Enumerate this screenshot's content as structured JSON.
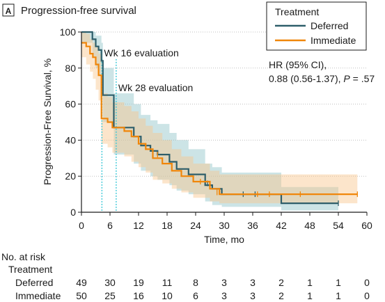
{
  "panel": {
    "letter": "A",
    "title": "Progression-free survival"
  },
  "colors": {
    "deferred": "#2e5e6a",
    "immediate": "#f0860a",
    "deferred_band": "#8fc3c7",
    "immediate_band": "#f8c58c",
    "evaluation_line": "#3cc8d8",
    "gridline": "#bfbfbf"
  },
  "chart_data": {
    "type": "line",
    "title": "",
    "xlabel": "Time, mo",
    "ylabel": "Progression-Free Survival, %",
    "xlim": [
      0,
      60
    ],
    "ylim": [
      0,
      100
    ],
    "xticks": [
      0,
      6,
      12,
      18,
      24,
      30,
      36,
      42,
      48,
      54,
      60
    ],
    "yticks": [
      0,
      20,
      40,
      60,
      80,
      100
    ],
    "grid": "horizontal",
    "legend": {
      "title": "Treatment",
      "position": "top-right",
      "entries": [
        "Deferred",
        "Immediate"
      ]
    },
    "hazard_ratio": {
      "line1": "HR (95% CI),",
      "line2": "0.88 (0.56-1.37), ",
      "p_label": "P",
      "p_value": " = .57"
    },
    "annotations": [
      {
        "label": "Wk 16 evaluation",
        "x": 4.3
      },
      {
        "label": "Wk 28 evaluation",
        "x": 7.3
      }
    ],
    "series": [
      {
        "name": "Deferred",
        "step": [
          [
            0,
            100
          ],
          [
            2,
            100
          ],
          [
            2.3,
            96
          ],
          [
            3,
            92
          ],
          [
            3.6,
            90
          ],
          [
            4.2,
            84
          ],
          [
            4.5,
            65
          ],
          [
            5.8,
            65
          ],
          [
            6.8,
            47
          ],
          [
            9,
            47
          ],
          [
            11,
            42
          ],
          [
            12.5,
            37
          ],
          [
            14.5,
            34
          ],
          [
            16,
            32
          ],
          [
            18.5,
            28
          ],
          [
            20,
            24
          ],
          [
            22.5,
            21
          ],
          [
            26,
            15
          ],
          [
            27.5,
            13
          ],
          [
            29.5,
            10
          ],
          [
            42,
            10
          ],
          [
            42,
            5
          ],
          [
            54,
            5
          ]
        ],
        "censored": [
          [
            26.5,
            16
          ],
          [
            34,
            10
          ],
          [
            36.5,
            10
          ],
          [
            54,
            5
          ]
        ],
        "ci_upper": [
          [
            0,
            100
          ],
          [
            2.3,
            100
          ],
          [
            3,
            98
          ],
          [
            4.2,
            94
          ],
          [
            4.5,
            80
          ],
          [
            5.8,
            80
          ],
          [
            6.8,
            66
          ],
          [
            9,
            66
          ],
          [
            11,
            60
          ],
          [
            12.5,
            54
          ],
          [
            14.5,
            51
          ],
          [
            16,
            49
          ],
          [
            18.5,
            44
          ],
          [
            20,
            40
          ],
          [
            22.5,
            35
          ],
          [
            26,
            27
          ],
          [
            27.5,
            25
          ],
          [
            29.5,
            22
          ],
          [
            42,
            22
          ],
          [
            42,
            14
          ],
          [
            54,
            14
          ]
        ],
        "ci_lower": [
          [
            0,
            94
          ],
          [
            2.3,
            86
          ],
          [
            3,
            80
          ],
          [
            3.6,
            76
          ],
          [
            4.2,
            70
          ],
          [
            4.5,
            50
          ],
          [
            5.8,
            50
          ],
          [
            6.8,
            32
          ],
          [
            9,
            32
          ],
          [
            11,
            27
          ],
          [
            12.5,
            23
          ],
          [
            14.5,
            20
          ],
          [
            16,
            18
          ],
          [
            18.5,
            15
          ],
          [
            20,
            12
          ],
          [
            22.5,
            10
          ],
          [
            26,
            6
          ],
          [
            27.5,
            4
          ],
          [
            29.5,
            3
          ],
          [
            42,
            3
          ],
          [
            42,
            1
          ],
          [
            54,
            1
          ]
        ]
      },
      {
        "name": "Immediate",
        "step": [
          [
            0,
            94
          ],
          [
            1,
            92
          ],
          [
            1.8,
            88
          ],
          [
            2.4,
            86
          ],
          [
            3,
            82
          ],
          [
            3.6,
            76
          ],
          [
            4.2,
            52
          ],
          [
            5.5,
            50
          ],
          [
            6.5,
            47
          ],
          [
            9,
            45
          ],
          [
            10.5,
            42
          ],
          [
            12,
            38
          ],
          [
            13.5,
            35
          ],
          [
            15,
            30
          ],
          [
            17,
            27
          ],
          [
            19,
            23
          ],
          [
            21,
            20
          ],
          [
            23.5,
            17
          ],
          [
            27,
            13
          ],
          [
            29,
            10
          ],
          [
            58,
            10
          ]
        ],
        "censored": [
          [
            16,
            32
          ],
          [
            25,
            17
          ],
          [
            28.5,
            11
          ],
          [
            37,
            10
          ],
          [
            39.5,
            10
          ],
          [
            46,
            10
          ],
          [
            58,
            10
          ]
        ],
        "ci_upper": [
          [
            0,
            100
          ],
          [
            1,
            99
          ],
          [
            1.8,
            96
          ],
          [
            2.4,
            94
          ],
          [
            3,
            92
          ],
          [
            3.6,
            88
          ],
          [
            4.2,
            66
          ],
          [
            5.5,
            64
          ],
          [
            6.5,
            61
          ],
          [
            9,
            59
          ],
          [
            10.5,
            56
          ],
          [
            12,
            52
          ],
          [
            13.5,
            48
          ],
          [
            15,
            44
          ],
          [
            17,
            40
          ],
          [
            19,
            35
          ],
          [
            21,
            31
          ],
          [
            23.5,
            27
          ],
          [
            27,
            23
          ],
          [
            29,
            21
          ],
          [
            58,
            21
          ]
        ],
        "ci_lower": [
          [
            0,
            86
          ],
          [
            1,
            82
          ],
          [
            1.8,
            78
          ],
          [
            2.4,
            74
          ],
          [
            3,
            68
          ],
          [
            3.6,
            62
          ],
          [
            4.2,
            38
          ],
          [
            5.5,
            36
          ],
          [
            6.5,
            33
          ],
          [
            9,
            31
          ],
          [
            10.5,
            28
          ],
          [
            12,
            25
          ],
          [
            13.5,
            22
          ],
          [
            15,
            18
          ],
          [
            17,
            16
          ],
          [
            19,
            13
          ],
          [
            21,
            11
          ],
          [
            23.5,
            8
          ],
          [
            27,
            6
          ],
          [
            29,
            5
          ],
          [
            58,
            5
          ]
        ]
      }
    ]
  },
  "at_risk": {
    "title": "No. at risk",
    "group_label": "Treatment",
    "times": [
      0,
      6,
      12,
      18,
      24,
      30,
      36,
      42,
      48,
      54,
      60
    ],
    "rows": [
      {
        "label": "Deferred",
        "counts": [
          "49",
          "30",
          "19",
          "11",
          "8",
          "3",
          "3",
          "2",
          "1",
          "1",
          "0"
        ]
      },
      {
        "label": "Immediate",
        "counts": [
          "50",
          "25",
          "16",
          "10",
          "6",
          "3",
          "3",
          "2",
          "1",
          "1",
          "0"
        ]
      }
    ]
  }
}
